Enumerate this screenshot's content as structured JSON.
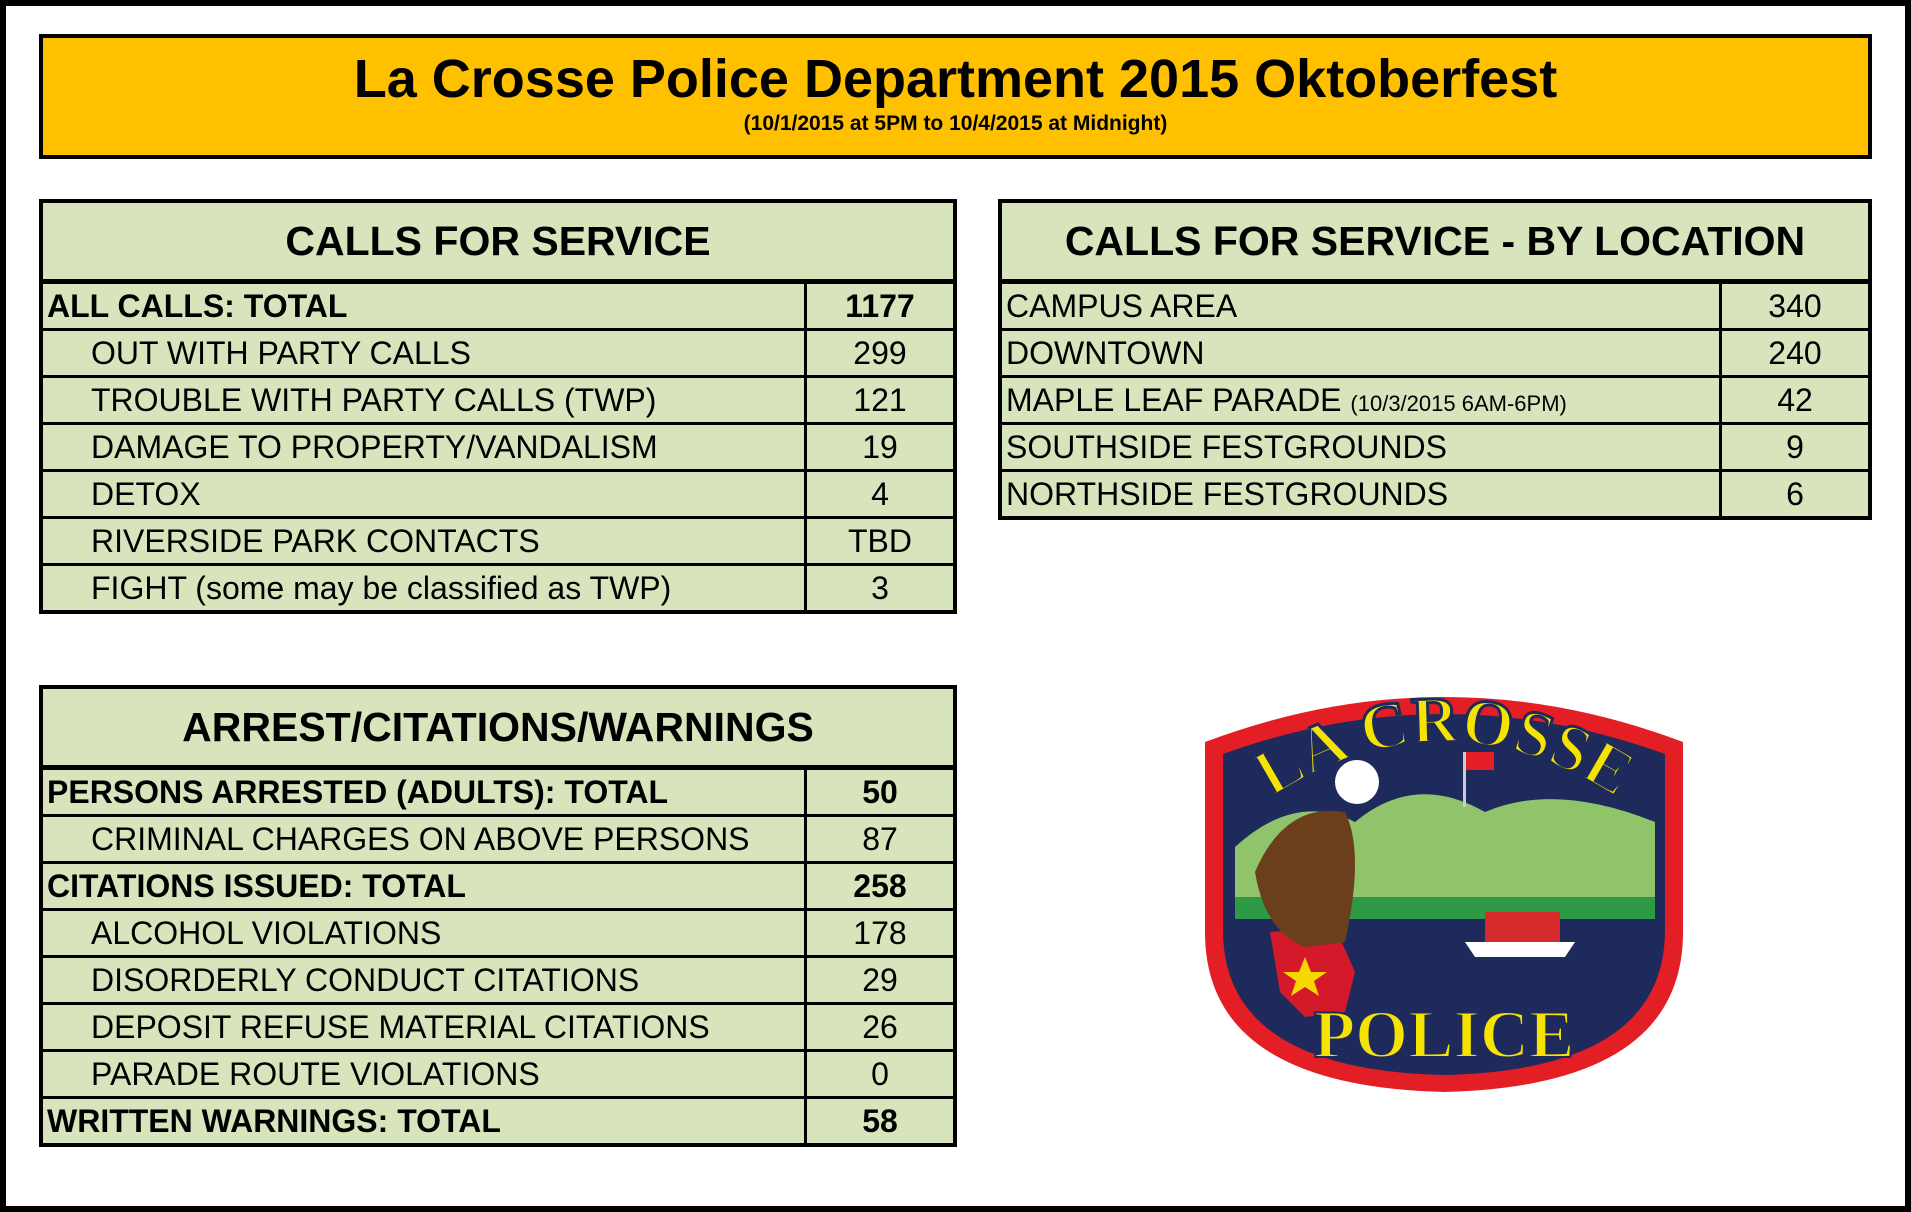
{
  "header": {
    "title": "La Crosse Police Department 2015 Oktoberfest",
    "subtitle": "(10/1/2015 at 5PM to 10/4/2015 at Midnight)"
  },
  "calls_for_service": {
    "title": "CALLS FOR SERVICE",
    "groups": [
      {
        "total": {
          "label": "ALL CALLS: TOTAL",
          "value": 1177
        },
        "items": [
          {
            "label": "OUT WITH PARTY CALLS",
            "value": 299
          },
          {
            "label": "TROUBLE WITH PARTY CALLS (TWP)",
            "value": 121
          },
          {
            "label": "DAMAGE TO PROPERTY/VANDALISM",
            "value": 19
          },
          {
            "label": "DETOX",
            "value": 4
          },
          {
            "label": "RIVERSIDE PARK CONTACTS",
            "value": "TBD"
          },
          {
            "label": "FIGHT (some may be classified as TWP)",
            "value": 3
          }
        ]
      }
    ]
  },
  "calls_by_location": {
    "title": "CALLS FOR SERVICE - BY LOCATION",
    "items": [
      {
        "label": "CAMPUS AREA",
        "value": 340
      },
      {
        "label": "DOWNTOWN",
        "value": 240
      },
      {
        "label": "MAPLE LEAF PARADE",
        "note": "(10/3/2015 6AM-6PM)",
        "value": 42
      },
      {
        "label": "SOUTHSIDE FESTGROUNDS",
        "value": 9
      },
      {
        "label": "NORTHSIDE FESTGROUNDS",
        "value": 6
      }
    ]
  },
  "arrests": {
    "title": "ARREST/CITATIONS/WARNINGS",
    "groups": [
      {
        "total": {
          "label": "PERSONS ARRESTED (ADULTS): TOTAL",
          "value": 50
        },
        "items": [
          {
            "label": "CRIMINAL CHARGES ON ABOVE PERSONS",
            "value": 87
          }
        ]
      },
      {
        "total": {
          "label": "CITATIONS ISSUED: TOTAL",
          "value": 258
        },
        "items": [
          {
            "label": "ALCOHOL VIOLATIONS",
            "value": 178
          },
          {
            "label": "DISORDERLY CONDUCT CITATIONS",
            "value": 29
          },
          {
            "label": "DEPOSIT REFUSE MATERIAL CITATIONS",
            "value": 26
          },
          {
            "label": "PARADE ROUTE VIOLATIONS",
            "value": 0
          }
        ]
      },
      {
        "total": {
          "label": "WRITTEN WARNINGS: TOTAL",
          "value": 58
        },
        "items": []
      }
    ]
  },
  "logo": {
    "top_text": "LA CROSSE",
    "bottom_text": "POLICE"
  }
}
